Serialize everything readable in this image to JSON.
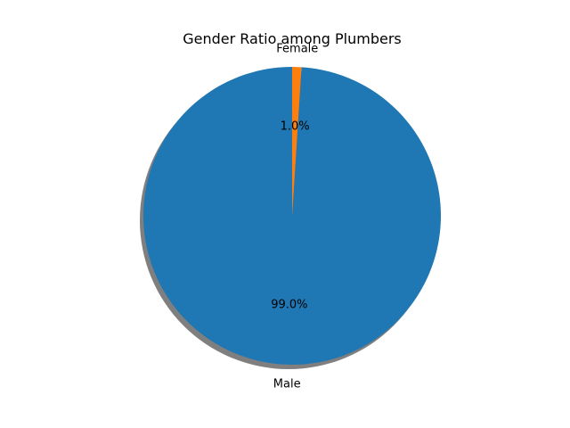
{
  "chart_data": {
    "type": "pie",
    "title": "Gender Ratio among Plumbers",
    "labels": [
      "Male",
      "Female"
    ],
    "values": [
      99.0,
      1.0
    ],
    "percent_labels": [
      "99.0%",
      "1.0%"
    ],
    "colors": [
      "#1f77b4",
      "#ff7f0e"
    ],
    "shadow": true,
    "start_angle_deg": 90,
    "direction": "counterclockwise"
  }
}
